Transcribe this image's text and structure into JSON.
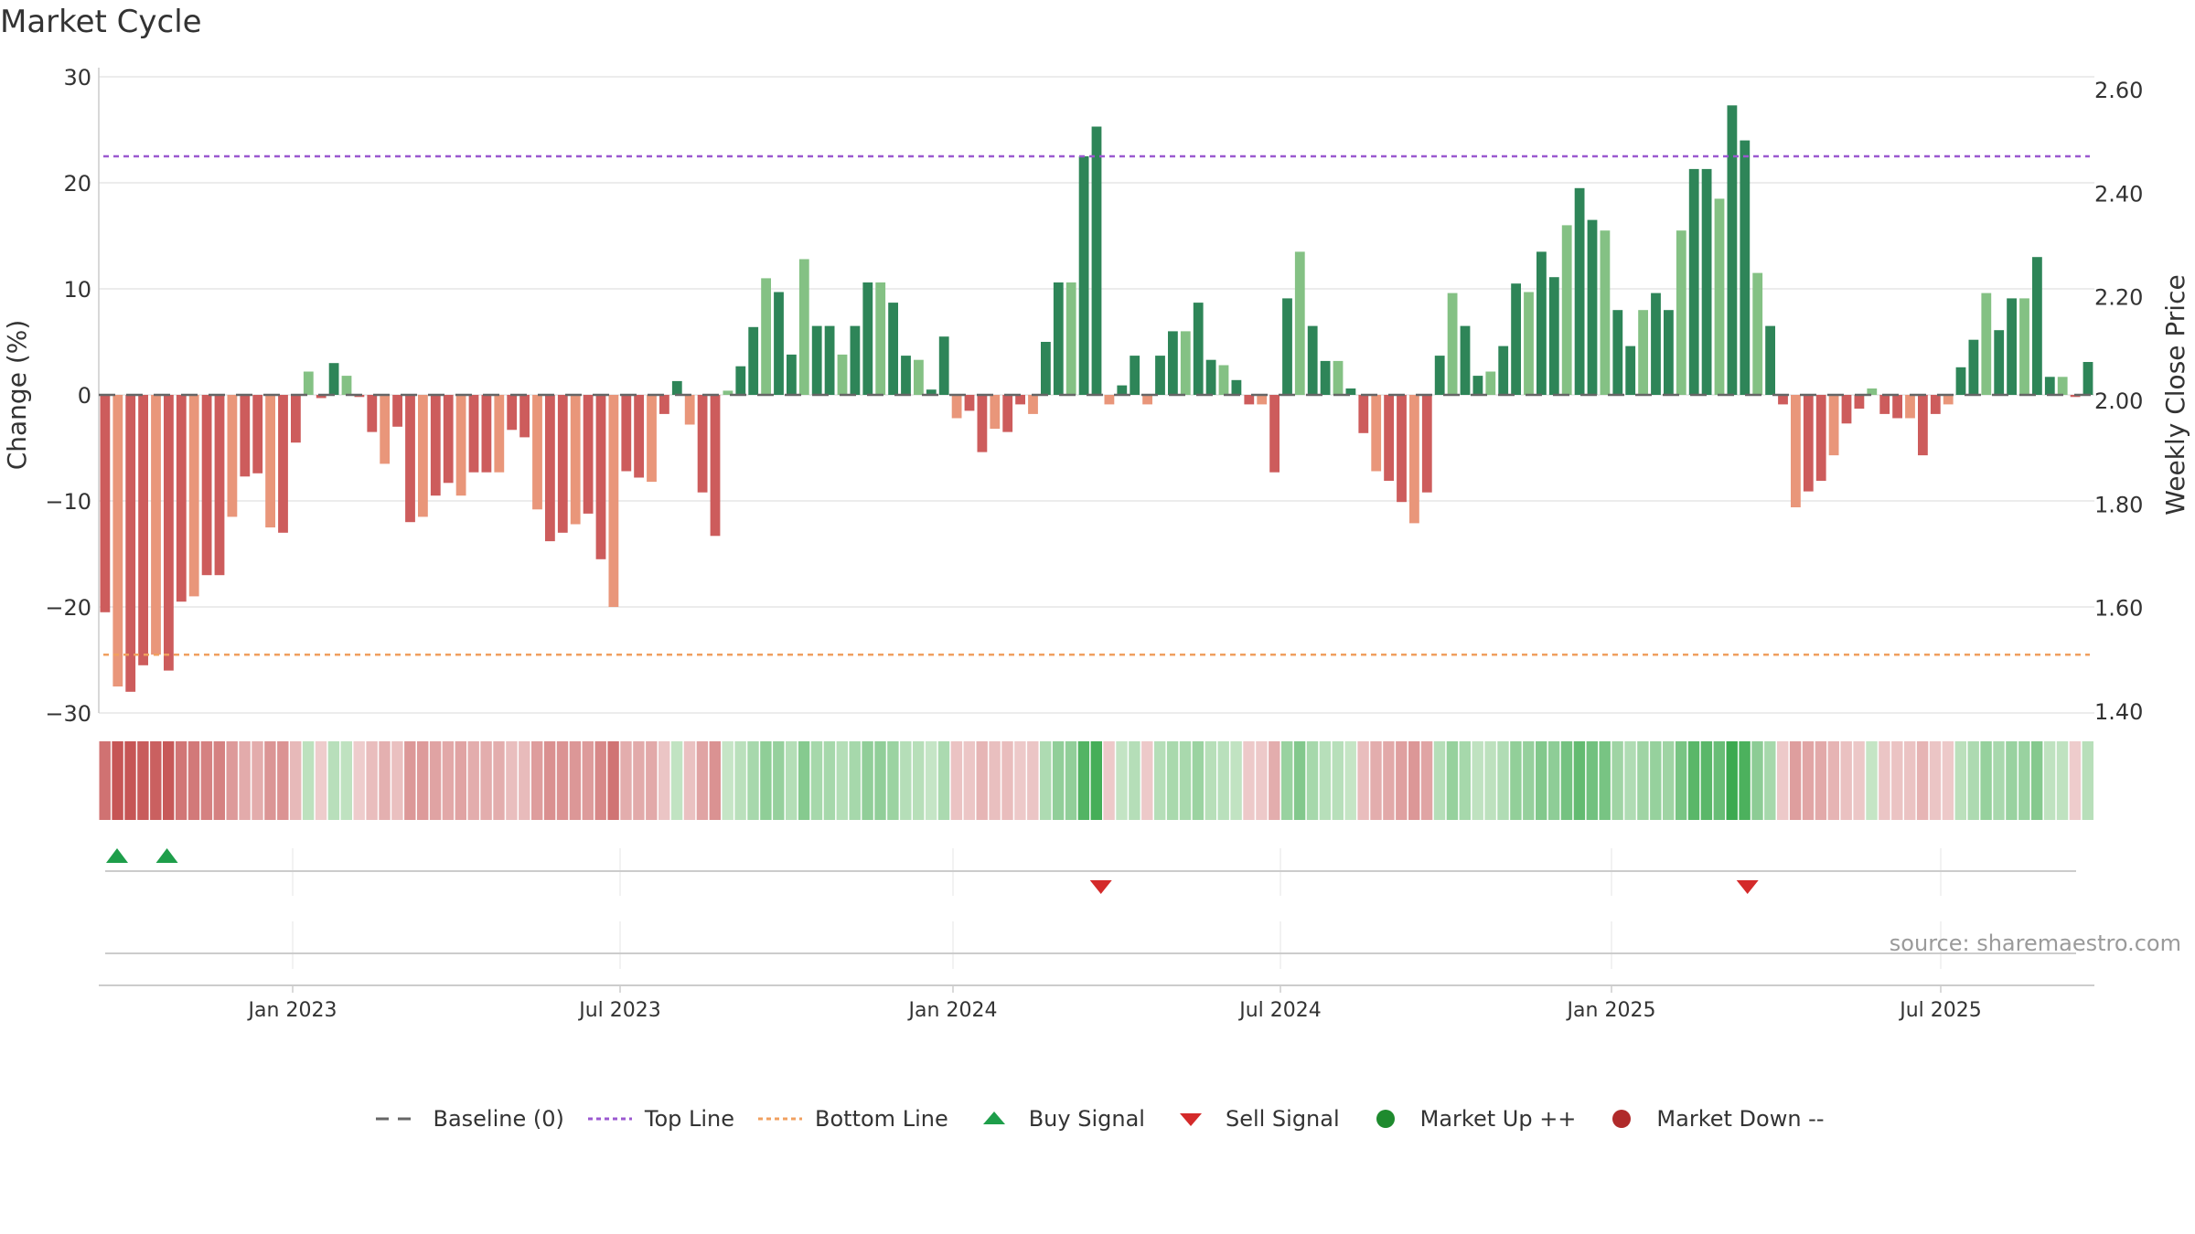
{
  "title": "Market Cycle",
  "source": "source: sharemaestro.com",
  "colors": {
    "up_strong": "#2e8558",
    "up_light": "#84c184",
    "down_strong": "#cd5c5c",
    "down_light": "#e9967a",
    "top_line": "#9b59d0",
    "bottom_line": "#f0a060",
    "buy": "#1e9e4a",
    "sell": "#d42a2a",
    "grid": "#e6e6e6",
    "baseline": "#666666"
  },
  "chart_data": {
    "type": "bar",
    "title": "Market Cycle",
    "ylabel": "Change (%)",
    "y2label": "Weekly Close Price",
    "ylim": [
      -30,
      30
    ],
    "y2lim": [
      1.4,
      2.6
    ],
    "yticks": [
      "30",
      "20",
      "10",
      "0",
      "−10",
      "−20",
      "−30"
    ],
    "y2ticks": [
      "2.60",
      "2.40",
      "2.20",
      "2.00",
      "1.80",
      "1.60",
      "1.40"
    ],
    "date_ticks": [
      "Jan 2023",
      "Jul 2023",
      "Jan 2024",
      "Jul 2024",
      "Jan 2025",
      "Jul 2025"
    ],
    "top_line": 22.5,
    "bottom_line": -24.5,
    "values": [
      -20.5,
      -27.5,
      -28,
      -25.5,
      -24.5,
      -26,
      -19.5,
      -19,
      -17,
      -17,
      -11.5,
      -7.7,
      -7.4,
      -12.5,
      -13,
      -4.5,
      2.2,
      -0.3,
      3,
      1.8,
      -0.2,
      -3.5,
      -6.5,
      -3,
      -12,
      -11.5,
      -9.5,
      -8.3,
      -9.5,
      -7.3,
      -7.3,
      -7.3,
      -3.3,
      -4,
      -10.8,
      -13.8,
      -13,
      -12.2,
      -11.2,
      -15.5,
      -20,
      -7.2,
      -7.8,
      -8.2,
      -1.8,
      1.3,
      -2.8,
      -9.2,
      -13.3,
      0.4,
      2.7,
      6.4,
      11,
      9.7,
      3.8,
      12.8,
      6.5,
      6.5,
      3.8,
      6.5,
      10.6,
      10.6,
      8.7,
      3.7,
      3.3,
      0.5,
      5.5,
      -2.2,
      -1.5,
      -5.4,
      -3.2,
      -3.5,
      -0.9,
      -1.8,
      5,
      10.6,
      10.6,
      22.5,
      25.3,
      -0.9,
      0.9,
      3.7,
      -0.9,
      3.7,
      6,
      6,
      8.7,
      3.3,
      2.8,
      1.4,
      -0.9,
      -0.9,
      -7.3,
      9.1,
      13.5,
      6.5,
      3.2,
      3.2,
      0.6,
      -3.6,
      -7.2,
      -8.1,
      -10.1,
      -12.1,
      -9.2,
      3.7,
      9.6,
      6.5,
      1.8,
      2.2,
      4.6,
      10.5,
      9.7,
      13.5,
      11.1,
      16,
      19.5,
      16.5,
      15.5,
      8,
      4.6,
      8,
      9.6,
      8,
      15.5,
      21.3,
      21.3,
      18.5,
      27.3,
      24,
      11.5,
      6.5,
      -0.9,
      -10.6,
      -9.1,
      -8.1,
      -5.7,
      -2.7,
      -1.3,
      0.6,
      -1.8,
      -2.2,
      -2.2,
      -5.7,
      -1.8,
      -0.9,
      2.6,
      5.2,
      9.6,
      6.1,
      9.1,
      9.1,
      13,
      1.7,
      1.7,
      -0.2,
      3.1
    ],
    "buy_signals": [
      0.0,
      0.025
    ],
    "sell_signals": [
      0.493,
      0.817
    ]
  },
  "legend": [
    {
      "label": "Baseline (0)",
      "kind": "dash",
      "color": "#666666"
    },
    {
      "label": "Top Line",
      "kind": "dot",
      "color": "#9b59d0"
    },
    {
      "label": "Bottom Line",
      "kind": "dot",
      "color": "#f0a060"
    },
    {
      "label": "Buy Signal",
      "kind": "up",
      "color": "#1e9e4a"
    },
    {
      "label": "Sell Signal",
      "kind": "down",
      "color": "#d42a2a"
    },
    {
      "label": "Market Up ++",
      "kind": "circle",
      "color": "#1e8a2e"
    },
    {
      "label": "Market Down --",
      "kind": "circle",
      "color": "#b02a2a"
    }
  ]
}
